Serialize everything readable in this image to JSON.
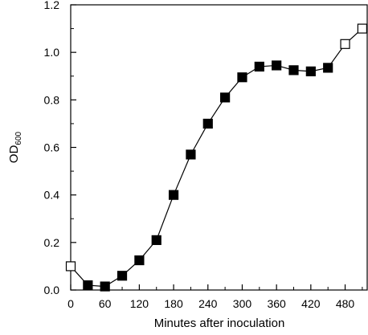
{
  "chart_data": {
    "type": "scatter",
    "title": "",
    "xlabel": "Minutes after inoculation",
    "ylabel": {
      "main": "OD",
      "sub": "600"
    },
    "xlim": [
      0,
      520
    ],
    "ylim": [
      0,
      1.2
    ],
    "xticks": [
      0,
      60,
      120,
      180,
      240,
      300,
      360,
      420,
      480
    ],
    "yticks": [
      0.0,
      0.2,
      0.4,
      0.6,
      0.8,
      1.0,
      1.2
    ],
    "ytick_labels": [
      "0.0",
      "0.2",
      "0.4",
      "0.6",
      "0.8",
      "1.0",
      "1.2"
    ],
    "grid": false,
    "connected_line": true,
    "series": [
      {
        "marker": "square",
        "points": [
          {
            "x": 0,
            "y": 0.1,
            "filled": false
          },
          {
            "x": 30,
            "y": 0.02,
            "filled": true
          },
          {
            "x": 60,
            "y": 0.015,
            "filled": true
          },
          {
            "x": 90,
            "y": 0.06,
            "filled": true
          },
          {
            "x": 120,
            "y": 0.125,
            "filled": true
          },
          {
            "x": 150,
            "y": 0.21,
            "filled": true
          },
          {
            "x": 180,
            "y": 0.4,
            "filled": true
          },
          {
            "x": 210,
            "y": 0.57,
            "filled": true
          },
          {
            "x": 240,
            "y": 0.7,
            "filled": true
          },
          {
            "x": 270,
            "y": 0.81,
            "filled": true
          },
          {
            "x": 300,
            "y": 0.895,
            "filled": true
          },
          {
            "x": 330,
            "y": 0.94,
            "filled": true
          },
          {
            "x": 360,
            "y": 0.945,
            "filled": true
          },
          {
            "x": 390,
            "y": 0.925,
            "filled": true
          },
          {
            "x": 420,
            "y": 0.92,
            "filled": true
          },
          {
            "x": 450,
            "y": 0.935,
            "filled": true
          },
          {
            "x": 480,
            "y": 1.035,
            "filled": false
          },
          {
            "x": 510,
            "y": 1.1,
            "filled": false
          }
        ]
      }
    ],
    "colors": {
      "line": "#000000",
      "marker_fill": "#000000",
      "open_marker_fill": "#ffffff",
      "axis": "#000000"
    }
  }
}
